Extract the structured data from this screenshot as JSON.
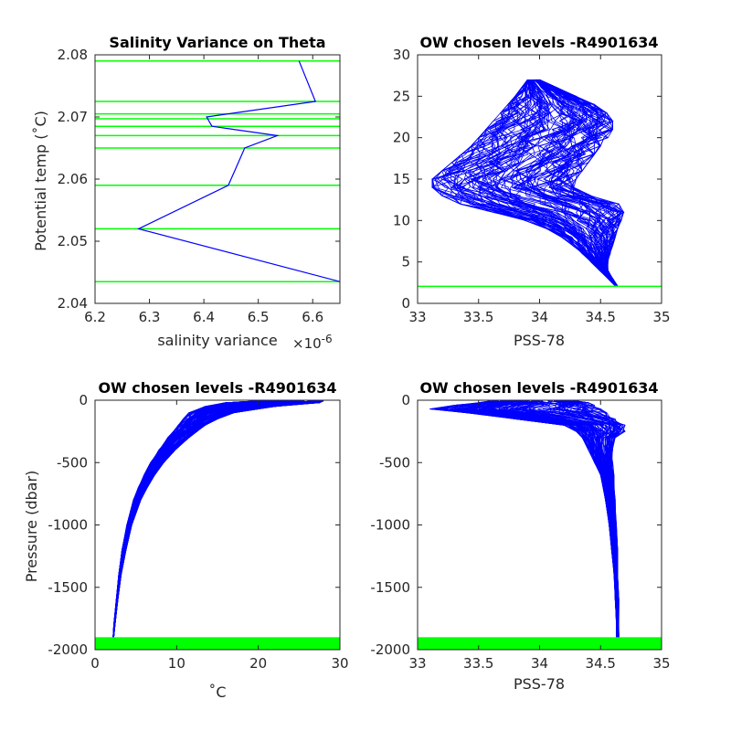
{
  "colors": {
    "profile": "#0000ff",
    "level": "#00ff00",
    "axis": "#262626"
  },
  "chart_data": [
    {
      "type": "line",
      "title": "Salinity Variance on Theta",
      "xlabel": "salinity variance",
      "x_exponent": "×10",
      "x_exponent_power": "-6",
      "ylabel": "Potential temp (˚C)",
      "xlim": [
        6.2,
        6.65
      ],
      "ylim": [
        2.04,
        2.08
      ],
      "xticks": [
        6.2,
        6.3,
        6.4,
        6.5,
        6.6
      ],
      "xtick_labels": [
        "6.2",
        "6.3",
        "6.4",
        "6.5",
        "6.6"
      ],
      "yticks": [
        2.04,
        2.05,
        2.06,
        2.07,
        2.08
      ],
      "ytick_labels": [
        "2.04",
        "2.05",
        "2.06",
        "2.07",
        "2.08"
      ],
      "series": [
        {
          "x": [
            6.65,
            6.28,
            6.445,
            6.475,
            6.535,
            6.415,
            6.405,
            6.605,
            6.575
          ],
          "y": [
            2.0435,
            2.052,
            2.059,
            2.065,
            2.067,
            2.0685,
            2.07,
            2.0725,
            2.079
          ]
        }
      ],
      "chosen_levels": [
        2.0435,
        2.052,
        2.059,
        2.065,
        2.067,
        2.0685,
        2.0697,
        2.0705,
        2.0725,
        2.079
      ]
    },
    {
      "type": "line",
      "title": "OW chosen levels -R4901634",
      "xlabel": "PSS-78",
      "ylabel": "",
      "xlim": [
        33,
        35
      ],
      "ylim": [
        0,
        30
      ],
      "xticks": [
        33,
        33.5,
        34,
        34.5,
        35
      ],
      "xtick_labels": [
        "33",
        "33.5",
        "34",
        "34.5",
        "35"
      ],
      "yticks": [
        0,
        5,
        10,
        15,
        20,
        25,
        30
      ],
      "ytick_labels": [
        "0",
        "5",
        "10",
        "15",
        "20",
        "25",
        "30"
      ],
      "profile_envelope": {
        "theta": [
          2.1,
          3,
          4,
          5,
          6,
          7,
          8,
          9,
          10,
          11,
          12,
          13,
          14,
          15,
          16,
          17,
          18,
          19,
          20,
          21,
          22,
          23,
          24,
          25,
          26,
          27
        ],
        "salinity_min": [
          34.62,
          34.56,
          34.49,
          34.42,
          34.35,
          34.27,
          34.18,
          34.06,
          33.88,
          33.62,
          33.35,
          33.2,
          33.12,
          33.12,
          33.2,
          33.28,
          33.36,
          33.44,
          33.5,
          33.56,
          33.62,
          33.68,
          33.74,
          33.8,
          33.85,
          33.9
        ],
        "salinity_max": [
          34.64,
          34.6,
          34.56,
          34.56,
          34.58,
          34.6,
          34.62,
          34.64,
          34.67,
          34.69,
          34.65,
          34.42,
          34.28,
          34.3,
          34.35,
          34.4,
          34.45,
          34.5,
          34.56,
          34.6,
          34.6,
          34.55,
          34.45,
          34.3,
          34.15,
          34.0
        ]
      },
      "chosen_levels": [
        2.05
      ]
    },
    {
      "type": "line",
      "title": "OW chosen levels -R4901634",
      "xlabel": "˚C",
      "ylabel": "Pressure (dbar)",
      "xlim": [
        0,
        30
      ],
      "ylim": [
        -2000,
        0
      ],
      "xticks": [
        0,
        10,
        20,
        30
      ],
      "xtick_labels": [
        "0",
        "10",
        "20",
        "30"
      ],
      "yticks": [
        -2000,
        -1500,
        -1000,
        -500,
        0
      ],
      "ytick_labels": [
        "-2000",
        "-1500",
        "-1000",
        "-500",
        "0"
      ],
      "profile_envelope": {
        "pressure": [
          -5,
          -20,
          -50,
          -100,
          -150,
          -200,
          -250,
          -300,
          -400,
          -500,
          -600,
          -700,
          -800,
          -1000,
          -1200,
          -1400,
          -1600,
          -1800,
          -1900
        ],
        "temp_min": [
          20,
          16,
          13.5,
          11.5,
          10.8,
          10.2,
          9.6,
          8.9,
          7.8,
          6.8,
          6,
          5.3,
          4.7,
          3.9,
          3.3,
          2.9,
          2.6,
          2.3,
          2.2
        ],
        "temp_max": [
          28,
          27.5,
          22,
          17,
          15,
          13.5,
          12.5,
          11.5,
          9.8,
          8.4,
          7.3,
          6.4,
          5.6,
          4.5,
          3.8,
          3.2,
          2.8,
          2.45,
          2.3
        ]
      },
      "chosen_level_band": [
        -2000,
        -1900
      ]
    },
    {
      "type": "line",
      "title": "OW chosen levels -R4901634",
      "xlabel": "PSS-78",
      "ylabel": "",
      "xlim": [
        33,
        35
      ],
      "ylim": [
        -2000,
        0
      ],
      "xticks": [
        33,
        33.5,
        34,
        34.5,
        35
      ],
      "xtick_labels": [
        "33",
        "33.5",
        "34",
        "34.5",
        "35"
      ],
      "yticks": [
        -2000,
        -1500,
        -1000,
        -500,
        0
      ],
      "ytick_labels": [
        "-2000",
        "-1500",
        "-1000",
        "-500",
        "0"
      ],
      "profile_envelope": {
        "pressure": [
          -5,
          -20,
          -40,
          -70,
          -100,
          -150,
          -200,
          -250,
          -300,
          -400,
          -500,
          -600,
          -800,
          -1000,
          -1200,
          -1400,
          -1600,
          -1800,
          -1900
        ],
        "sal_min": [
          33.6,
          33.5,
          33.3,
          33.1,
          33.4,
          33.8,
          34.2,
          34.3,
          34.35,
          34.4,
          34.45,
          34.5,
          34.54,
          34.57,
          34.59,
          34.61,
          34.62,
          34.63,
          34.63
        ],
        "sal_max": [
          34.3,
          34.4,
          34.45,
          34.5,
          34.55,
          34.62,
          34.7,
          34.7,
          34.62,
          34.6,
          34.6,
          34.61,
          34.62,
          34.63,
          34.64,
          34.64,
          34.65,
          34.65,
          34.65
        ]
      },
      "chosen_level_band": [
        -2000,
        -1900
      ]
    }
  ]
}
